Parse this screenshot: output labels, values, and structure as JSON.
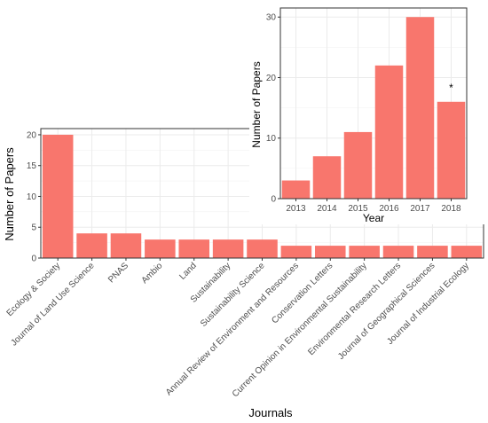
{
  "chart_data": [
    {
      "type": "bar",
      "categories": [
        "Ecology & Society",
        "Journal of Land Use Science",
        "PNAS",
        "Ambio",
        "Land",
        "Sustainability",
        "Sustainability Science",
        "Annual Review of Environment and Resources",
        "Conservation Letters",
        "Current Opinion in Environmental Sustainability",
        "Environmental Research Letters",
        "Journal of Geographical Sciences",
        "Journal of Industrial Ecology"
      ],
      "values": [
        20,
        4,
        4,
        3,
        3,
        3,
        3,
        2,
        2,
        2,
        2,
        2,
        2
      ],
      "xlabel": "Journals",
      "ylabel": "Number of Papers",
      "ylim": [
        0,
        21
      ],
      "yticks": [
        0,
        5,
        10,
        15,
        20
      ],
      "grid": true,
      "color": "#f8766d"
    },
    {
      "type": "bar",
      "categories": [
        "2013",
        "2014",
        "2015",
        "2016",
        "2017",
        "2018"
      ],
      "values": [
        3,
        7,
        11,
        22,
        30,
        16
      ],
      "xlabel": "Year",
      "ylabel": "Number of Papers",
      "ylim": [
        0,
        31.5
      ],
      "yticks": [
        0,
        10,
        20,
        30
      ],
      "grid": true,
      "color": "#f8766d",
      "annotation": {
        "category": "2018",
        "text": "*"
      }
    }
  ]
}
